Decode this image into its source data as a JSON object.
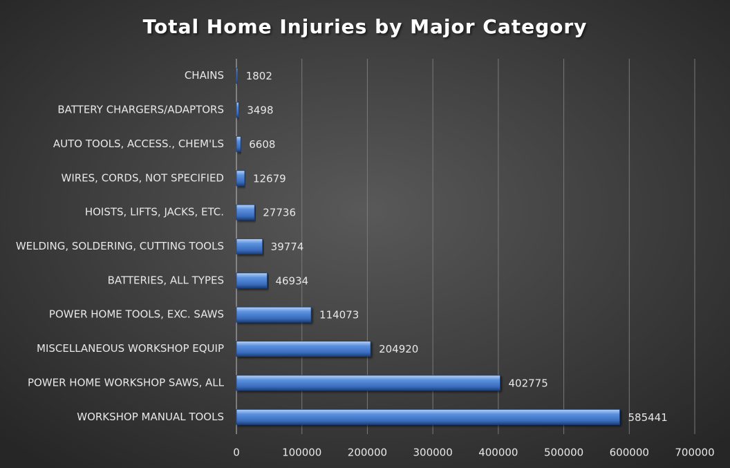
{
  "chart_data": {
    "type": "bar",
    "orientation": "horizontal",
    "title": "Total Home Injuries by Major Category",
    "categories": [
      "CHAINS",
      "BATTERY CHARGERS/ADAPTORS",
      "AUTO TOOLS, ACCESS., CHEM'LS",
      "WIRES, CORDS, NOT SPECIFIED",
      "HOISTS, LIFTS, JACKS, ETC.",
      "WELDING, SOLDERING, CUTTING TOOLS",
      "BATTERIES, ALL TYPES",
      "POWER HOME TOOLS, EXC. SAWS",
      "MISCELLANEOUS WORKSHOP EQUIP",
      "POWER HOME WORKSHOP SAWS, ALL",
      "WORKSHOP MANUAL TOOLS"
    ],
    "values": [
      1802,
      3498,
      6608,
      12679,
      27736,
      39774,
      46934,
      114073,
      204920,
      402775,
      585441
    ],
    "color": "#4a7fd0",
    "xlim": [
      0,
      700000
    ],
    "xticks": [
      0,
      100000,
      200000,
      300000,
      400000,
      500000,
      600000,
      700000
    ],
    "grid": true
  }
}
